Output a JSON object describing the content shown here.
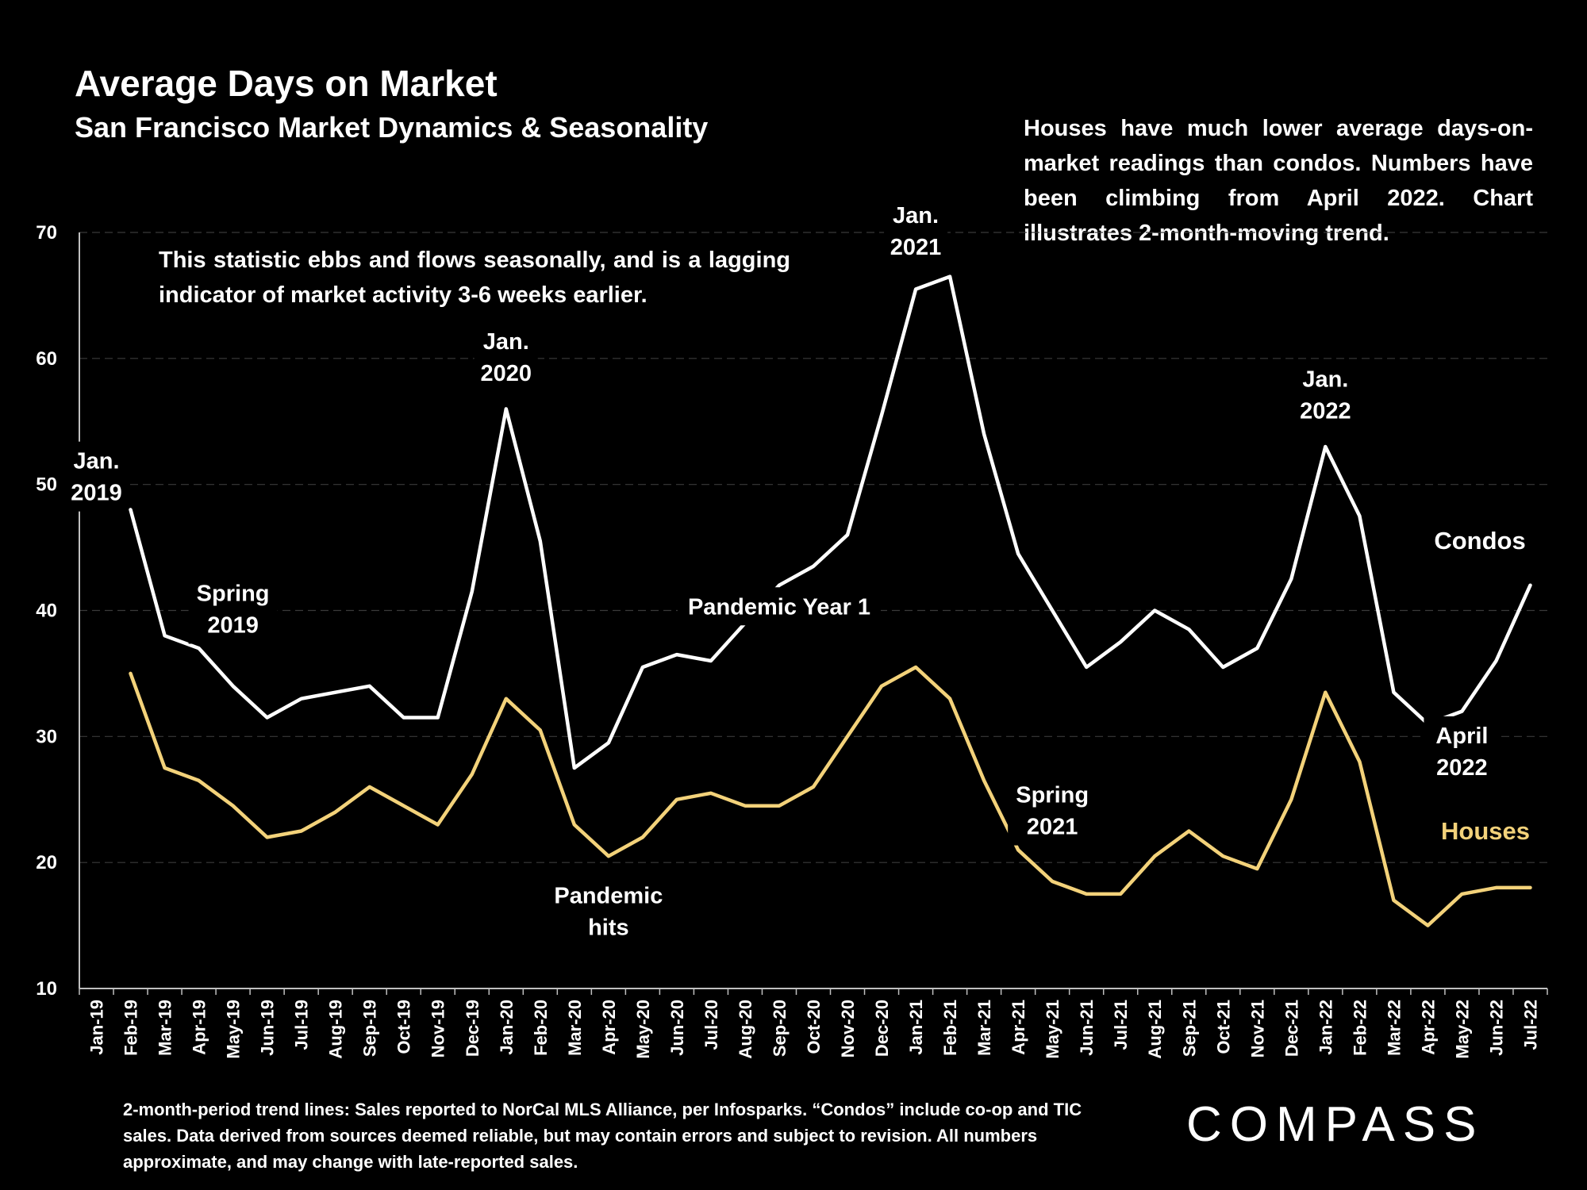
{
  "title": "Average Days on Market",
  "subtitle": "San Francisco Market Dynamics & Seasonality",
  "note_right": "Houses have much lower average days-on-market readings than condos. Numbers have been climbing from April 2022. Chart illustrates 2-month-moving trend.",
  "note_left": "This statistic ebbs and flows seasonally, and is a lagging indicator of market activity 3-6 weeks earlier.",
  "footnote": "2-month-period trend lines: Sales reported to NorCal MLS Alliance, per Infosparks. “Condos” include co-op and TIC sales. Data derived from sources deemed reliable, but may contain errors and subject to revision. All numbers approximate, and may change with late-reported sales.",
  "logo": "COMPASS",
  "chart_data": {
    "type": "line",
    "categories": [
      "Jan-19",
      "Feb-19",
      "Mar-19",
      "Apr-19",
      "May-19",
      "Jun-19",
      "Jul-19",
      "Aug-19",
      "Sep-19",
      "Oct-19",
      "Nov-19",
      "Dec-19",
      "Jan-20",
      "Feb-20",
      "Mar-20",
      "Apr-20",
      "May-20",
      "Jun-20",
      "Jul-20",
      "Aug-20",
      "Sep-20",
      "Oct-20",
      "Nov-20",
      "Dec-20",
      "Jan-21",
      "Feb-21",
      "Mar-21",
      "Apr-21",
      "May-21",
      "Jun-21",
      "Jul-21",
      "Aug-21",
      "Sep-21",
      "Oct-21",
      "Nov-21",
      "Dec-21",
      "Jan-22",
      "Feb-22",
      "Mar-22",
      "Apr-22",
      "May-22",
      "Jun-22",
      "Jul-22"
    ],
    "yticks": [
      10,
      20,
      30,
      40,
      50,
      60,
      70
    ],
    "ylim": [
      10,
      70
    ],
    "series": [
      {
        "name": "Condos",
        "color": "#ffffff",
        "values": [
          null,
          48,
          38,
          37,
          34,
          31.5,
          33,
          33.5,
          34,
          31.5,
          31.5,
          41.5,
          56,
          45.5,
          27.5,
          29.5,
          35.5,
          36.5,
          36,
          39,
          42,
          43.5,
          46,
          55.5,
          65.5,
          66.5,
          54,
          44.5,
          40,
          35.5,
          37.5,
          40,
          38.5,
          35.5,
          37,
          42.5,
          53,
          47.5,
          33.5,
          31,
          32,
          36,
          42
        ]
      },
      {
        "name": "Houses",
        "color": "#f3d27a",
        "values": [
          null,
          35,
          27.5,
          26.5,
          24.5,
          22,
          22.5,
          24,
          26,
          24.5,
          23,
          27,
          33,
          30.5,
          23,
          20.5,
          22,
          25,
          25.5,
          24.5,
          24.5,
          26,
          30,
          34,
          35.5,
          33,
          26.5,
          21,
          18.5,
          17.5,
          17.5,
          20.5,
          22.5,
          20.5,
          19.5,
          25,
          33.5,
          28,
          17,
          15,
          17.5,
          18,
          18
        ]
      }
    ],
    "annotations": [
      {
        "lines": [
          "Jan.",
          "2019"
        ],
        "x": "Jan-19",
        "y": 50
      },
      {
        "lines": [
          "Spring",
          "2019"
        ],
        "x": "May-19",
        "y": 39.5
      },
      {
        "lines": [
          "Jan.",
          "2020"
        ],
        "x": "Jan-20",
        "y": 59.5
      },
      {
        "lines": [
          "Pandemic",
          "hits"
        ],
        "x": "Apr-20",
        "y": 15.5
      },
      {
        "lines": [
          "Pandemic Year 1"
        ],
        "x": "Sep-20",
        "y": 39.7
      },
      {
        "lines": [
          "Jan.",
          "2021"
        ],
        "x": "Jan-21",
        "y": 69.5
      },
      {
        "lines": [
          "Spring",
          "2021"
        ],
        "x": "May-21",
        "y": 23.5
      },
      {
        "lines": [
          "Jan.",
          "2022"
        ],
        "x": "Jan-22",
        "y": 56.5
      },
      {
        "lines": [
          "April",
          "2022"
        ],
        "x": "May-22",
        "y": 28.2
      }
    ]
  }
}
